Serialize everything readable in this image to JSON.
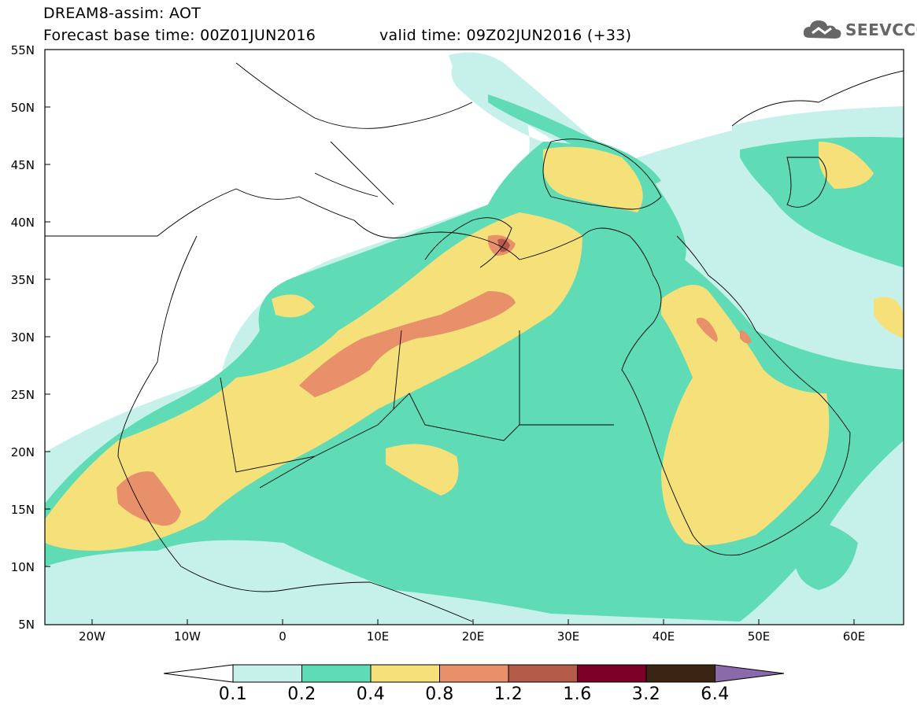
{
  "header": {
    "model_line": "DREAM8-assim: AOT",
    "base_line": "Forecast base time: 00Z01JUN2016",
    "valid_line": "valid time: 09Z02JUN2016 (+33)",
    "logo_text": "SEEVCCC"
  },
  "map": {
    "lat_labels": [
      "55N",
      "50N",
      "45N",
      "40N",
      "35N",
      "30N",
      "25N",
      "20N",
      "15N",
      "10N",
      "5N"
    ],
    "lon_labels": [
      "20W",
      "10W",
      "0",
      "10E",
      "20E",
      "30E",
      "40E",
      "50E",
      "60E"
    ]
  },
  "legend": {
    "levels": [
      "0.1",
      "0.2",
      "0.4",
      "0.8",
      "1.2",
      "1.6",
      "3.2",
      "6.4"
    ],
    "colors": [
      "#c6f1ea",
      "#5fdcb5",
      "#f5e07a",
      "#e8906a",
      "#b45a48",
      "#7a0028",
      "#3a2414",
      "#8a6aaa"
    ]
  }
}
